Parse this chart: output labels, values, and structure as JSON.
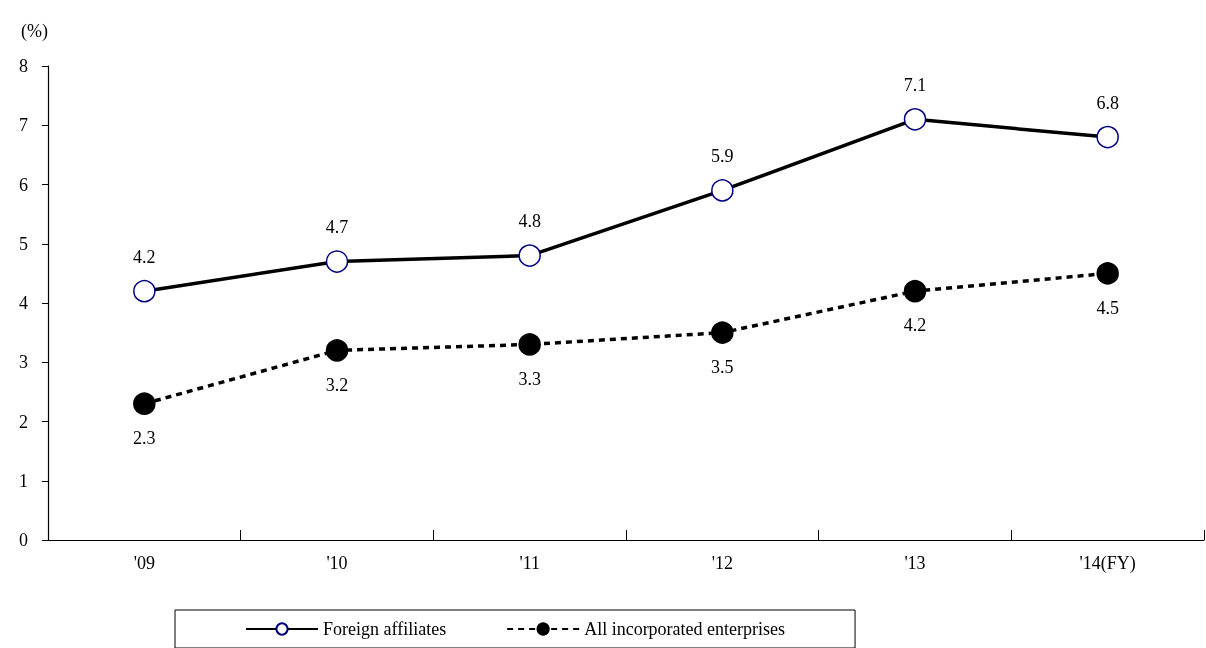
{
  "chart_data": {
    "type": "line",
    "ylabel": "(%)",
    "categories": [
      "'09",
      "'10",
      "'11",
      "'12",
      "'13",
      "'14(FY)"
    ],
    "series": [
      {
        "name": "Foreign affiliates",
        "color": "#000000",
        "line_style": "solid",
        "values": [
          4.2,
          4.7,
          4.8,
          5.9,
          7.1,
          6.8
        ]
      },
      {
        "name": "All incorporated enterprises",
        "color": "#000000",
        "line_style": "dashed",
        "values": [
          2.3,
          3.2,
          3.3,
          3.5,
          4.2,
          4.5
        ]
      }
    ],
    "ylim": [
      0,
      8
    ],
    "yticks": [
      0,
      1,
      2,
      3,
      4,
      5,
      6,
      7,
      8
    ],
    "grid": false,
    "legend": "bottom",
    "marker": "circle",
    "data_labels": true
  }
}
